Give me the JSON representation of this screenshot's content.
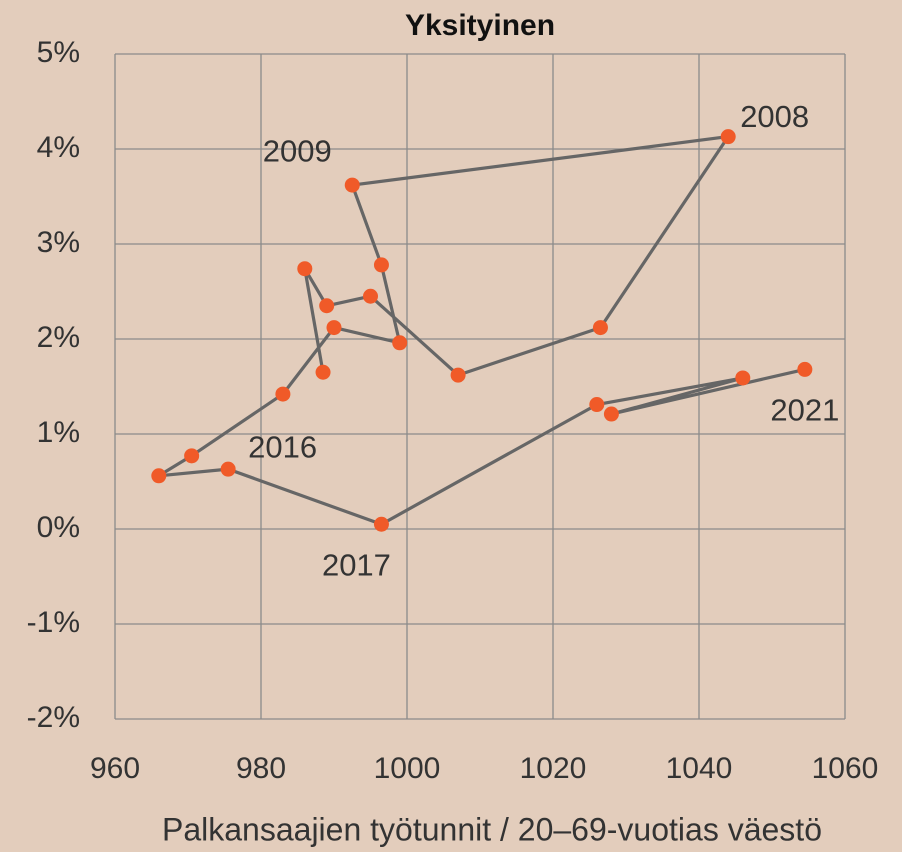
{
  "chart_data": {
    "type": "connected_scatter",
    "title": "Yksityinen",
    "x_label": "Palkansaajien työtunnit / 20–69-vuotias väestö",
    "x": [
      988.5,
      986,
      989,
      995,
      1007,
      1026.5,
      1044,
      992.5,
      996.5,
      999,
      990,
      983,
      970.5,
      966,
      975.5,
      996.5,
      1026,
      1046,
      1028,
      1054.5
    ],
    "y": [
      1.65,
      2.74,
      2.35,
      2.45,
      1.62,
      2.12,
      4.13,
      3.62,
      2.78,
      1.96,
      2.12,
      1.42,
      0.77,
      0.56,
      0.63,
      0.05,
      1.31,
      1.59,
      1.21,
      1.68
    ],
    "labels": [
      null,
      null,
      null,
      null,
      null,
      null,
      "2008",
      "2009",
      null,
      null,
      null,
      null,
      null,
      null,
      "2016",
      "2017",
      null,
      null,
      null,
      "2021"
    ],
    "line_color": "#666666",
    "marker_color": "#f05a28",
    "xlim": [
      960,
      1060
    ],
    "xticks": [
      960,
      980,
      1000,
      1020,
      1040,
      1060
    ],
    "ylim": [
      -2,
      5
    ],
    "yticks": [
      {
        "value": -2,
        "label": "-2%"
      },
      {
        "value": -1,
        "label": "-1%"
      },
      {
        "value": 0,
        "label": "0%"
      },
      {
        "value": 1,
        "label": "1%"
      },
      {
        "value": 2,
        "label": "2%"
      },
      {
        "value": 3,
        "label": "3%"
      },
      {
        "value": 4,
        "label": "4%"
      },
      {
        "value": 5,
        "label": "5%"
      }
    ],
    "grid": true
  }
}
